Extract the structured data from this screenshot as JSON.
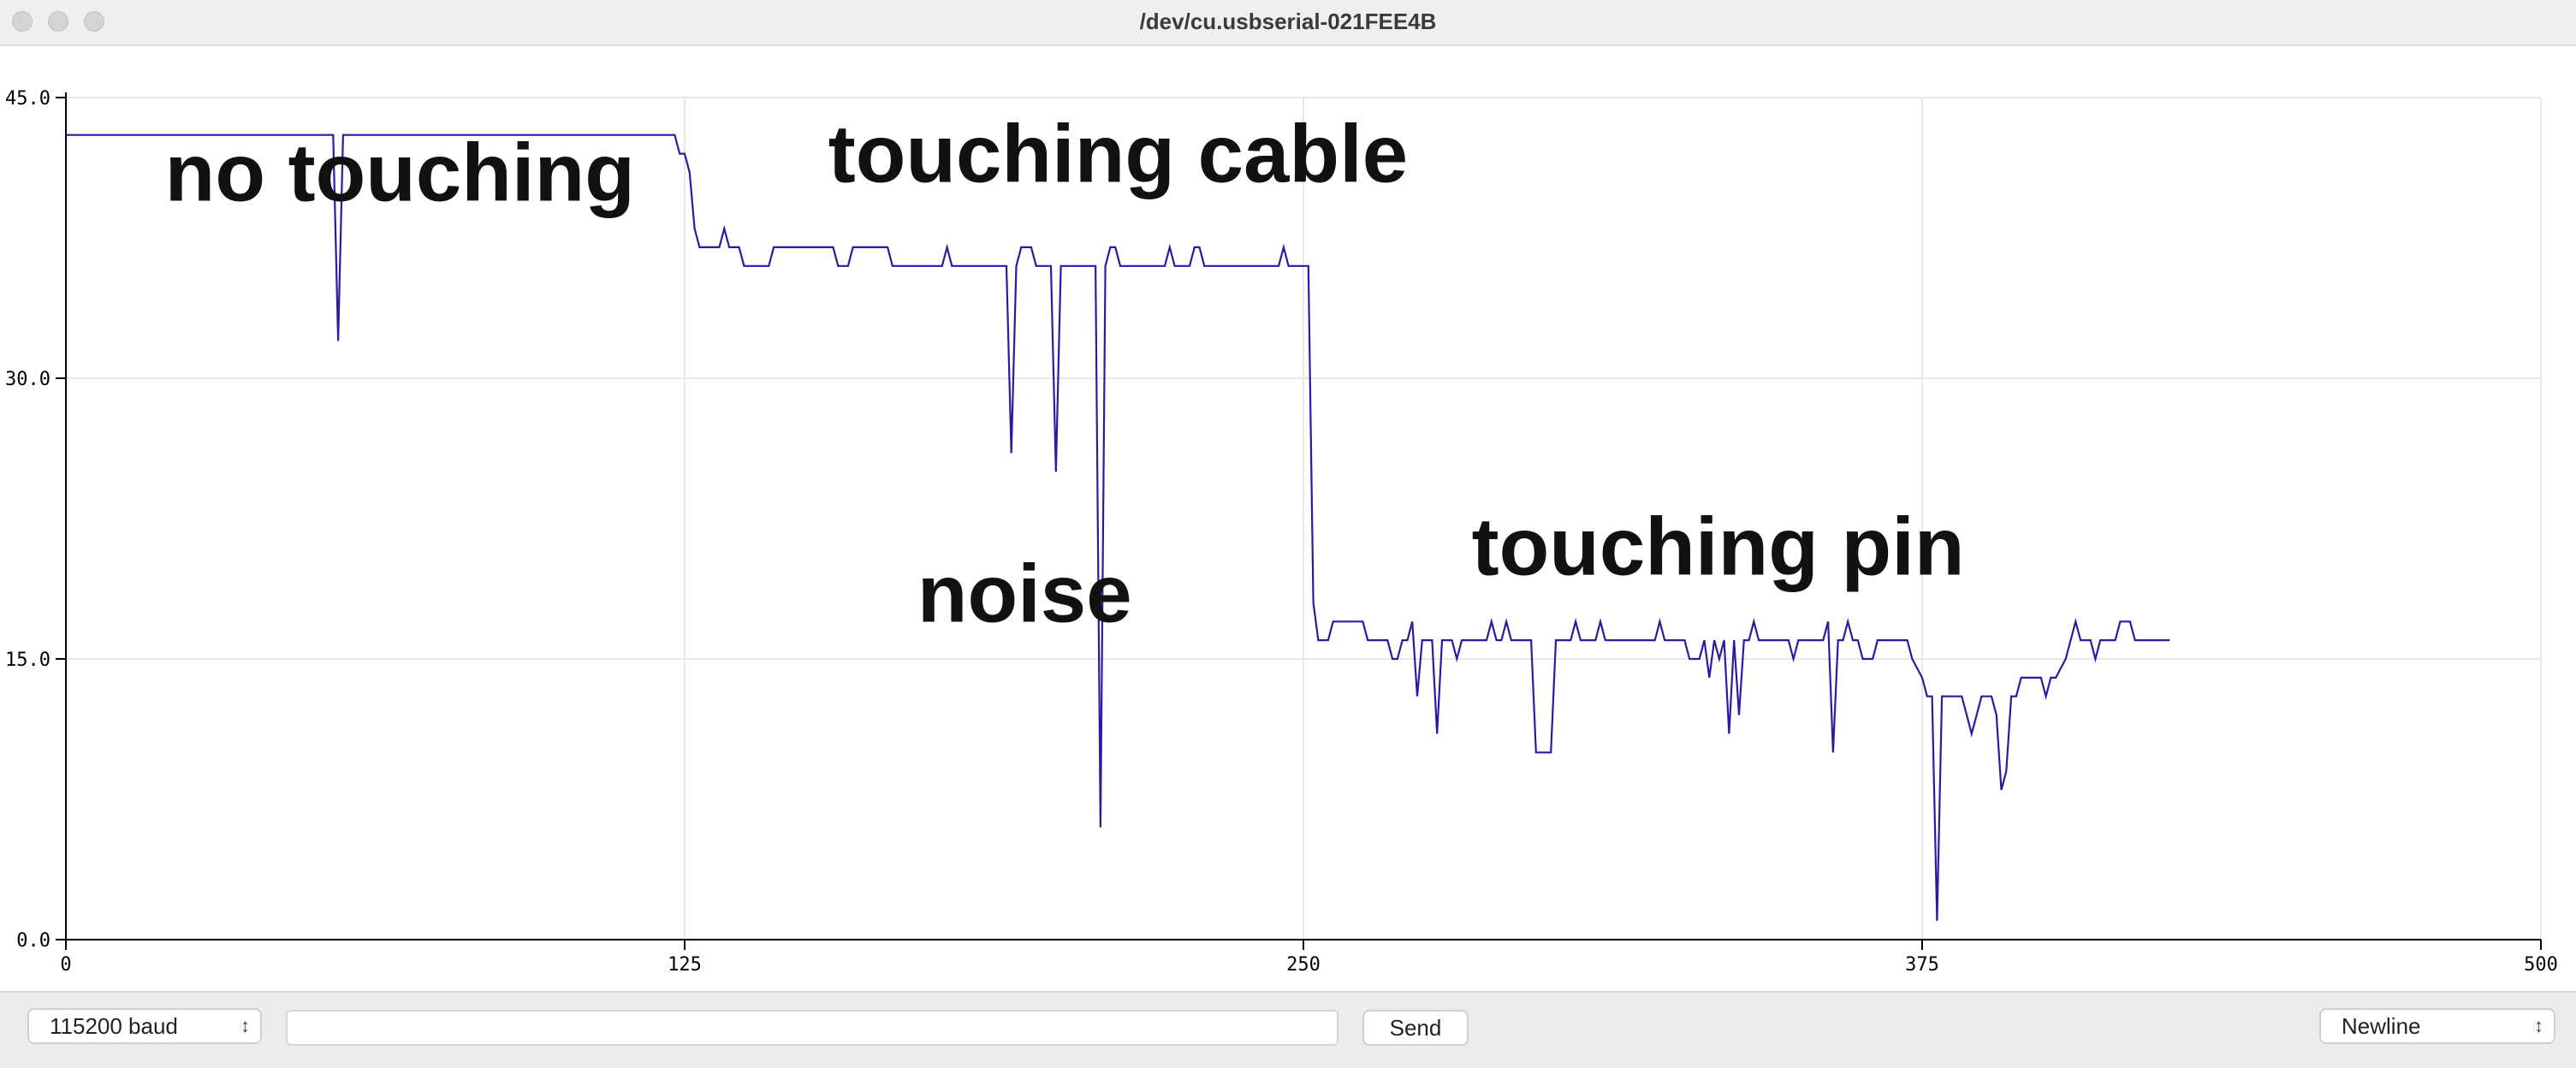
{
  "window": {
    "title": "/dev/cu.usbserial-021FEE4B"
  },
  "toolbar": {
    "baud_label": "115200 baud",
    "send_input_value": "",
    "send_label": "Send",
    "line_ending_label": "Newline"
  },
  "colors": {
    "series": "#2a1ba0",
    "axis": "#000000",
    "grid": "#e8e8e8"
  },
  "chart_data": {
    "type": "line",
    "title": "",
    "xlabel": "",
    "ylabel": "",
    "xlim": [
      0,
      500
    ],
    "ylim": [
      0,
      45
    ],
    "xticks": [
      "0",
      "125",
      "250",
      "375",
      "500"
    ],
    "yticks": [
      "0.0",
      "15.0",
      "30.0",
      "45.0"
    ],
    "grid": true,
    "annotations": [
      {
        "text": "no touching",
        "x": 20,
        "y": 39.5
      },
      {
        "text": "touching cable",
        "x": 154,
        "y": 40.5
      },
      {
        "text": "noise",
        "x": 172,
        "y": 17
      },
      {
        "text": "touching pin",
        "x": 284,
        "y": 19.5
      }
    ],
    "series": [
      {
        "points": [
          [
            0,
            43
          ],
          [
            54,
            43
          ],
          [
            55,
            32
          ],
          [
            56,
            43
          ],
          [
            123,
            43
          ],
          [
            124,
            42
          ],
          [
            125,
            42
          ],
          [
            126,
            41
          ],
          [
            127,
            38
          ],
          [
            128,
            37
          ],
          [
            132,
            37
          ],
          [
            133,
            38
          ],
          [
            134,
            37
          ],
          [
            136,
            37
          ],
          [
            137,
            36
          ],
          [
            142,
            36
          ],
          [
            143,
            37
          ],
          [
            155,
            37
          ],
          [
            156,
            36
          ],
          [
            158,
            36
          ],
          [
            159,
            37
          ],
          [
            166,
            37
          ],
          [
            167,
            36
          ],
          [
            177,
            36
          ],
          [
            178,
            37
          ],
          [
            179,
            36
          ],
          [
            190,
            36
          ],
          [
            191,
            26
          ],
          [
            192,
            36
          ],
          [
            193,
            37
          ],
          [
            195,
            37
          ],
          [
            196,
            36
          ],
          [
            199,
            36
          ],
          [
            200,
            25
          ],
          [
            201,
            36
          ],
          [
            208,
            36
          ],
          [
            209,
            6
          ],
          [
            210,
            36
          ],
          [
            211,
            37
          ],
          [
            212,
            37
          ],
          [
            213,
            36
          ],
          [
            222,
            36
          ],
          [
            223,
            37
          ],
          [
            224,
            36
          ],
          [
            227,
            36
          ],
          [
            228,
            37
          ],
          [
            229,
            37
          ],
          [
            230,
            36
          ],
          [
            245,
            36
          ],
          [
            246,
            37
          ],
          [
            247,
            36
          ],
          [
            251,
            36
          ],
          [
            252,
            18
          ],
          [
            253,
            16
          ],
          [
            255,
            16
          ],
          [
            256,
            17
          ],
          [
            262,
            17
          ],
          [
            263,
            16
          ],
          [
            267,
            16
          ],
          [
            268,
            15
          ],
          [
            269,
            15
          ],
          [
            270,
            16
          ],
          [
            271,
            16
          ],
          [
            272,
            17
          ],
          [
            273,
            13
          ],
          [
            274,
            16
          ],
          [
            276,
            16
          ],
          [
            277,
            11
          ],
          [
            278,
            16
          ],
          [
            280,
            16
          ],
          [
            281,
            15
          ],
          [
            282,
            16
          ],
          [
            287,
            16
          ],
          [
            288,
            17
          ],
          [
            289,
            16
          ],
          [
            290,
            16
          ],
          [
            291,
            17
          ],
          [
            292,
            16
          ],
          [
            296,
            16
          ],
          [
            297,
            10
          ],
          [
            300,
            10
          ],
          [
            301,
            16
          ],
          [
            304,
            16
          ],
          [
            305,
            17
          ],
          [
            306,
            16
          ],
          [
            309,
            16
          ],
          [
            310,
            17
          ],
          [
            311,
            16
          ],
          [
            321,
            16
          ],
          [
            322,
            17
          ],
          [
            323,
            16
          ],
          [
            327,
            16
          ],
          [
            328,
            15
          ],
          [
            330,
            15
          ],
          [
            331,
            16
          ],
          [
            332,
            14
          ],
          [
            333,
            16
          ],
          [
            334,
            15
          ],
          [
            335,
            16
          ],
          [
            336,
            11
          ],
          [
            337,
            16
          ],
          [
            338,
            12
          ],
          [
            339,
            16
          ],
          [
            340,
            16
          ],
          [
            341,
            17
          ],
          [
            342,
            16
          ],
          [
            348,
            16
          ],
          [
            349,
            15
          ],
          [
            350,
            16
          ],
          [
            355,
            16
          ],
          [
            356,
            17
          ],
          [
            357,
            10
          ],
          [
            358,
            16
          ],
          [
            359,
            16
          ],
          [
            360,
            17
          ],
          [
            361,
            16
          ],
          [
            362,
            16
          ],
          [
            363,
            15
          ],
          [
            365,
            15
          ],
          [
            366,
            16
          ],
          [
            372,
            16
          ],
          [
            373,
            15
          ],
          [
            375,
            14
          ],
          [
            376,
            13
          ],
          [
            377,
            13
          ],
          [
            378,
            1
          ],
          [
            379,
            13
          ],
          [
            383,
            13
          ],
          [
            384,
            12
          ],
          [
            385,
            11
          ],
          [
            386,
            12
          ],
          [
            387,
            13
          ],
          [
            389,
            13
          ],
          [
            390,
            12
          ],
          [
            391,
            8
          ],
          [
            392,
            9
          ],
          [
            393,
            13
          ],
          [
            394,
            13
          ],
          [
            395,
            14
          ],
          [
            399,
            14
          ],
          [
            400,
            13
          ],
          [
            401,
            14
          ],
          [
            402,
            14
          ],
          [
            404,
            15
          ],
          [
            405,
            16
          ],
          [
            406,
            17
          ],
          [
            407,
            16
          ],
          [
            409,
            16
          ],
          [
            410,
            15
          ],
          [
            411,
            16
          ],
          [
            414,
            16
          ],
          [
            415,
            17
          ],
          [
            417,
            17
          ],
          [
            418,
            16
          ],
          [
            421,
            16
          ],
          [
            422,
            16
          ],
          [
            423,
            16
          ],
          [
            424,
            16
          ],
          [
            425,
            16
          ]
        ]
      }
    ]
  }
}
